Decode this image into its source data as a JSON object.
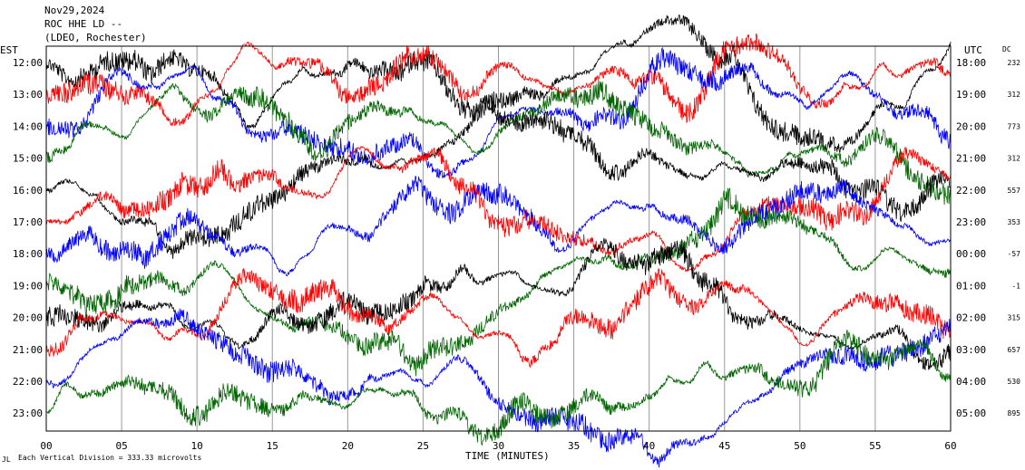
{
  "header": {
    "date": "Nov29,2024",
    "station": "ROC HHE LD --",
    "network": "(LDEO, Rochester)"
  },
  "labels": {
    "left_zone": "EST",
    "right_zone": "UTC",
    "dc_header": "DC",
    "footer_mark": "JL",
    "footer_note": "Each Vertical Division =  333.33 microvolts"
  },
  "chart_data": {
    "type": "line",
    "xlabel": "TIME (MINUTES)",
    "xlim": [
      0,
      60
    ],
    "x_ticks": [
      "00",
      "05",
      "10",
      "15",
      "20",
      "25",
      "30",
      "35",
      "40",
      "45",
      "50",
      "55",
      "60"
    ],
    "grid": "vertical lines every 5 minutes",
    "rows": [
      {
        "est": "12:00",
        "utc": "18:00",
        "dc": "232",
        "color": "#000000"
      },
      {
        "est": "13:00",
        "utc": "19:00",
        "dc": "312",
        "color": "#ff0000"
      },
      {
        "est": "14:00",
        "utc": "20:00",
        "dc": "773",
        "color": "#0000ff"
      },
      {
        "est": "15:00",
        "utc": "21:00",
        "dc": "312",
        "color": "#006400"
      },
      {
        "est": "16:00",
        "utc": "22:00",
        "dc": "557",
        "color": "#000000"
      },
      {
        "est": "17:00",
        "utc": "23:00",
        "dc": "353",
        "color": "#ff0000"
      },
      {
        "est": "18:00",
        "utc": "00:00",
        "dc": "-57",
        "color": "#0000ff"
      },
      {
        "est": "19:00",
        "utc": "01:00",
        "dc": "-1",
        "color": "#006400"
      },
      {
        "est": "20:00",
        "utc": "02:00",
        "dc": "315",
        "color": "#000000"
      },
      {
        "est": "21:00",
        "utc": "03:00",
        "dc": "657",
        "color": "#ff0000"
      },
      {
        "est": "22:00",
        "utc": "04:00",
        "dc": "530",
        "color": "#0000ff"
      },
      {
        "est": "23:00",
        "utc": "05:00",
        "dc": "895",
        "color": "#006400"
      }
    ]
  }
}
